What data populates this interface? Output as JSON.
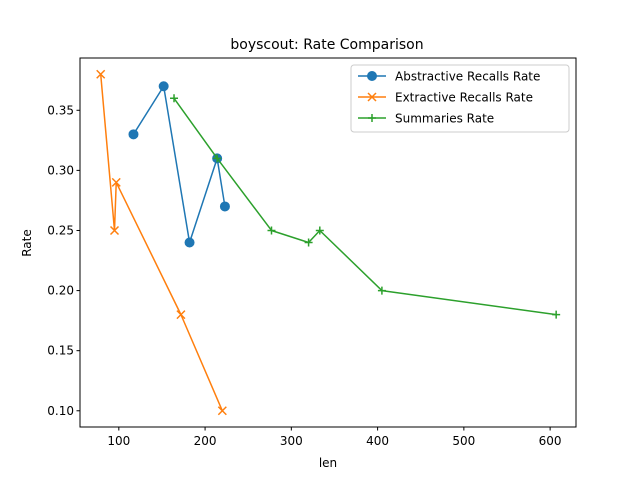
{
  "chart_data": {
    "type": "line",
    "title": "boyscout: Rate Comparison",
    "xlabel": "len",
    "ylabel": "Rate",
    "xlim": [
      55,
      630
    ],
    "ylim": [
      0.0865,
      0.3935
    ],
    "xticks": [
      100,
      200,
      300,
      400,
      500,
      600
    ],
    "yticks": [
      0.1,
      0.15,
      0.2,
      0.25,
      0.3,
      0.35
    ],
    "grid": false,
    "legend_position": "top-right",
    "series": [
      {
        "name": "Abstractive Recalls Rate",
        "color": "#1f77b4",
        "marker": "circle",
        "x": [
          117,
          152,
          182,
          214,
          223
        ],
        "y": [
          0.33,
          0.37,
          0.24,
          0.31,
          0.27
        ]
      },
      {
        "name": "Extractive Recalls Rate",
        "color": "#ff7f0e",
        "marker": "x",
        "x": [
          79,
          95,
          97,
          172,
          220
        ],
        "y": [
          0.38,
          0.25,
          0.29,
          0.18,
          0.1
        ]
      },
      {
        "name": "Summaries Rate",
        "color": "#2ca02c",
        "marker": "plus",
        "x": [
          164,
          214,
          277,
          320,
          333,
          405,
          607
        ],
        "y": [
          0.36,
          0.31,
          0.25,
          0.24,
          0.25,
          0.2,
          0.18
        ]
      }
    ]
  }
}
